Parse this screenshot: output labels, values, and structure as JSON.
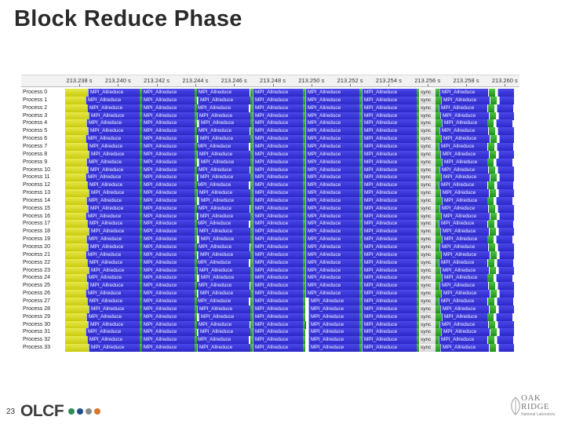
{
  "slide": {
    "title": "Block Reduce Phase",
    "page_number": "23",
    "logo_text": "OLCF",
    "logo_dot_colors": [
      "#2e8b57",
      "#1f4e8c",
      "#8a8a8a",
      "#d9772b"
    ],
    "lab_logo_line1": "OAK",
    "lab_logo_line2": "RIDGE",
    "lab_logo_tagline": "National Laboratory"
  },
  "trace": {
    "time_ticks": [
      "213.238 s",
      "213.240 s",
      "213.242 s",
      "213.244 s",
      "213.246 s",
      "213.248 s",
      "213.250 s",
      "213.252 s",
      "213.254 s",
      "213.256 s",
      "213.258 s",
      "213.260 s"
    ],
    "segment_label": "MPI_Allreduce",
    "sync_label": "sync",
    "colors": {
      "compute": "#d4d600",
      "mpi": "#2c28c8",
      "gap": "#2fa82a"
    },
    "processes": [
      "Process 0",
      "Process 1",
      "Process 2",
      "Process 3",
      "Process 4",
      "Process 5",
      "Process 6",
      "Process 7",
      "Process 8",
      "Process 9",
      "Process 10",
      "Process 11",
      "Process 12",
      "Process 13",
      "Process 14",
      "Process 15",
      "Process 16",
      "Process 17",
      "Process 18",
      "Process 19",
      "Process 20",
      "Process 21",
      "Process 22",
      "Process 23",
      "Process 24",
      "Process 25",
      "Process 26",
      "Process 27",
      "Process 28",
      "Process 29",
      "Process 30",
      "Process 31",
      "Process 32",
      "Process 33"
    ]
  }
}
